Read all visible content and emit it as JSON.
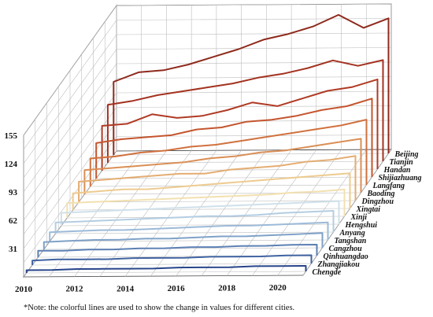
{
  "chart_data": {
    "type": "line",
    "title": "",
    "xlabel": "",
    "ylabel": "",
    "x": [
      2010,
      2011,
      2012,
      2013,
      2014,
      2015,
      2016,
      2017,
      2018,
      2019,
      2020,
      2021
    ],
    "x_ticks": [
      "2010",
      "2012",
      "2014",
      "2016",
      "2018",
      "2020"
    ],
    "y_ticks": [
      "31",
      "62",
      "93",
      "124",
      "155"
    ],
    "ylim": [
      0,
      155
    ],
    "series": [
      {
        "name": "Beijing",
        "color": "#8e2a1c",
        "values": [
          78,
          88,
          90,
          96,
          104,
          112,
          122,
          128,
          136,
          148,
          134,
          144
        ]
      },
      {
        "name": "Tianjin",
        "color": "#a33220",
        "values": [
          62,
          66,
          72,
          76,
          80,
          84,
          90,
          94,
          100,
          108,
          102,
          108
        ]
      },
      {
        "name": "Handan",
        "color": "#b03a24",
        "values": [
          48,
          50,
          60,
          56,
          58,
          64,
          72,
          68,
          76,
          84,
          88,
          96
        ]
      },
      {
        "name": "Shijiazhuang",
        "color": "#c4552e",
        "values": [
          38,
          42,
          44,
          46,
          52,
          54,
          60,
          62,
          66,
          72,
          76,
          84
        ]
      },
      {
        "name": "Langfang",
        "color": "#d0713e",
        "values": [
          30,
          32,
          36,
          38,
          42,
          44,
          48,
          52,
          56,
          60,
          64,
          70
        ]
      },
      {
        "name": "Baoding",
        "color": "#da8f56",
        "values": [
          26,
          28,
          30,
          32,
          34,
          38,
          40,
          44,
          46,
          50,
          54,
          58
        ]
      },
      {
        "name": "Dingzhou",
        "color": "#e4ad72",
        "values": [
          22,
          24,
          26,
          28,
          30,
          30,
          34,
          36,
          38,
          42,
          44,
          48
        ]
      },
      {
        "name": "Xingtai",
        "color": "#edcb8f",
        "values": [
          18,
          20,
          22,
          22,
          24,
          26,
          28,
          30,
          32,
          34,
          36,
          38
        ]
      },
      {
        "name": "Xinji",
        "color": "#f2e0b0",
        "values": [
          16,
          17,
          18,
          19,
          20,
          21,
          22,
          23,
          24,
          26,
          27,
          29
        ]
      },
      {
        "name": "Hengshui",
        "color": "#cfe0ea",
        "values": [
          14,
          15,
          16,
          17,
          18,
          19,
          20,
          21,
          22,
          23,
          24,
          25
        ]
      },
      {
        "name": "Anyang",
        "color": "#b4cde2",
        "values": [
          12,
          13,
          14,
          15,
          16,
          17,
          18,
          18,
          19,
          21,
          22,
          23
        ]
      },
      {
        "name": "Tangshan",
        "color": "#9cbad8",
        "values": [
          10,
          11,
          12,
          12,
          13,
          14,
          15,
          16,
          16,
          17,
          18,
          19
        ]
      },
      {
        "name": "Cangzhou",
        "color": "#7fa1c8",
        "values": [
          8,
          9,
          10,
          10,
          11,
          11,
          12,
          13,
          13,
          14,
          15,
          16
        ]
      },
      {
        "name": "Qinhuangdao",
        "color": "#5d80b4",
        "values": [
          7,
          7,
          8,
          8,
          9,
          9,
          10,
          10,
          11,
          11,
          12,
          12
        ]
      },
      {
        "name": "Zhangjiakou",
        "color": "#3f62a0",
        "values": [
          5,
          6,
          6,
          6,
          7,
          7,
          7,
          8,
          8,
          8,
          9,
          9
        ]
      },
      {
        "name": "Chengde",
        "color": "#28458a",
        "values": [
          3,
          3,
          4,
          4,
          4,
          4,
          5,
          5,
          5,
          6,
          6,
          6
        ]
      }
    ],
    "grid": true,
    "legend": "right"
  },
  "note": "*Note: the colorful lines are used to show the change in values for different cities."
}
